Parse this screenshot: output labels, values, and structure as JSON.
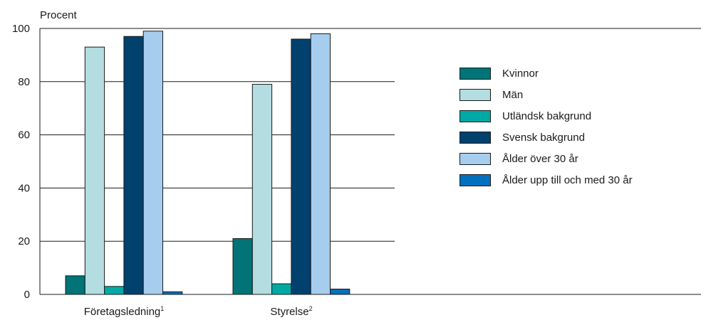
{
  "chart_data": {
    "type": "bar",
    "ylabel": "Procent",
    "ylim": [
      0,
      100
    ],
    "yticks": [
      "0",
      "20",
      "40",
      "60",
      "80",
      "100"
    ],
    "grid": true,
    "legend_position": "right",
    "categories": [
      {
        "label": "Företagsledning",
        "footnote": "1"
      },
      {
        "label": "Styrelse",
        "footnote": "2"
      }
    ],
    "series": [
      {
        "name": "Kvinnor",
        "color": "#007477",
        "values": [
          7,
          21
        ]
      },
      {
        "name": "Män",
        "color": "#b3dde0",
        "values": [
          93,
          79
        ]
      },
      {
        "name": "Utländsk bakgrund",
        "color": "#00aaa4",
        "values": [
          3,
          4
        ]
      },
      {
        "name": "Svensk bakgrund",
        "color": "#00416e",
        "values": [
          97,
          96
        ]
      },
      {
        "name": "Ålder över 30 år",
        "color": "#a6cdee",
        "values": [
          99,
          98
        ]
      },
      {
        "name": "Ålder upp till och med 30 år",
        "color": "#0070bf",
        "values": [
          1,
          2
        ]
      }
    ]
  }
}
